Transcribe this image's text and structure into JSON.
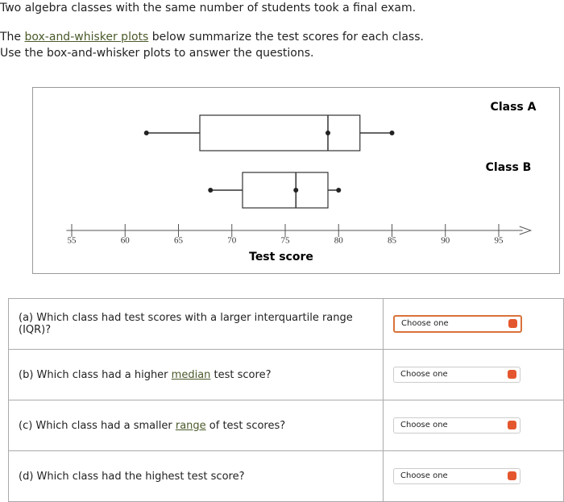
{
  "intro": [
    "Two algebra classes with the same number of students took a final exam."
  ],
  "instructions": [
    [
      "The ",
      "box-and-whisker plots",
      " below summarize the test scores for each class."
    ],
    [
      "Use the box-and-whisker plots to answer the questions."
    ]
  ],
  "chart_data": {
    "type": "boxplot",
    "xlabel": "Test score",
    "xlim": [
      54.5,
      98
    ],
    "xticks": [
      55,
      60,
      65,
      70,
      75,
      80,
      85,
      90,
      95
    ],
    "series": [
      {
        "name": "Class A",
        "min": 62,
        "q1": 67,
        "median": 79,
        "q3": 82,
        "max": 85
      },
      {
        "name": "Class B",
        "min": 68,
        "q1": 71,
        "median": 76,
        "q3": 79,
        "max": 80
      }
    ]
  },
  "questions": [
    {
      "parts": [
        "(a) Which class had test scores with a larger interquartile range (IQR)?"
      ],
      "select": "Choose one"
    },
    {
      "parts": [
        "(b) Which class had a higher ",
        "median",
        " test score?"
      ],
      "select": "Choose one"
    },
    {
      "parts": [
        "(c) Which class had a smaller ",
        "range",
        " of test scores?"
      ],
      "select": "Choose one"
    },
    {
      "parts": [
        "(d) Which class had the highest test score?"
      ],
      "select": "Choose one"
    }
  ]
}
